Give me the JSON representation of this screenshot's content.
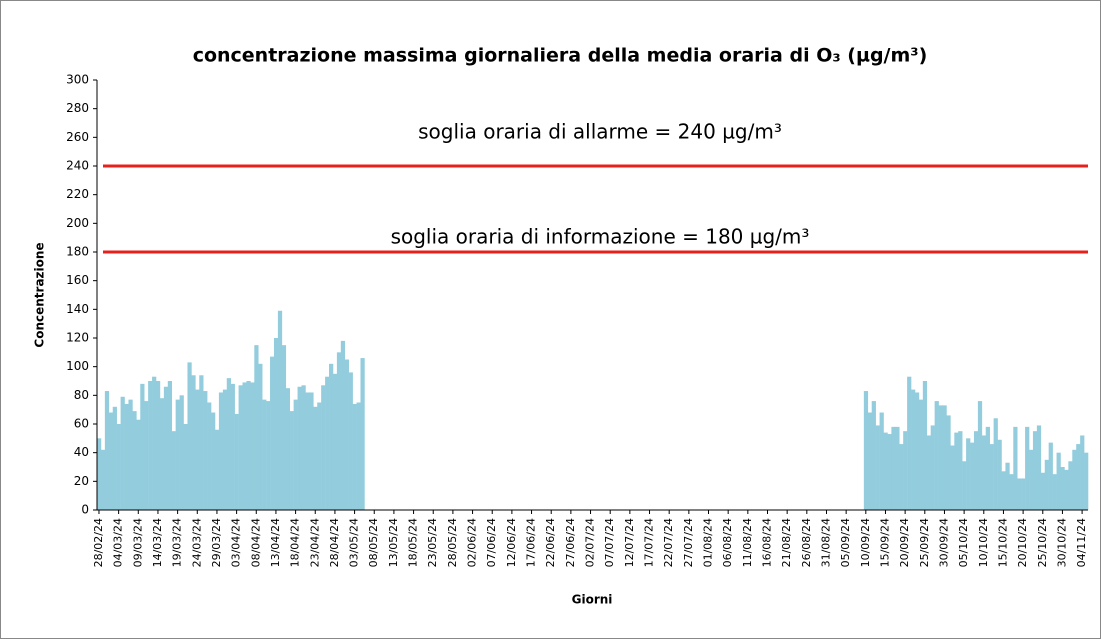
{
  "chart_data": {
    "type": "bar",
    "title": "concentrazione massima giornaliera della media oraria di O₃ (µg/m³)",
    "x_label": "Giorni",
    "y_label": "Concentrazione",
    "color": "#93cddd",
    "ylim": [
      0,
      300
    ],
    "yticks": [
      0,
      20,
      40,
      60,
      80,
      100,
      120,
      140,
      160,
      180,
      200,
      220,
      240,
      260,
      280,
      300
    ],
    "thresholds": [
      {
        "value": 240,
        "label": "soglia oraria di allarme = 240 µg/m³",
        "color": "#e8201c"
      },
      {
        "value": 180,
        "label": "soglia oraria di informazione = 180 µg/m³",
        "color": "#e8201c"
      }
    ],
    "categories": [
      "28/02/24",
      null,
      null,
      null,
      null,
      "04/03/24",
      null,
      null,
      null,
      null,
      "09/03/24",
      null,
      null,
      null,
      null,
      "14/03/24",
      null,
      null,
      null,
      null,
      "19/03/24",
      null,
      null,
      null,
      null,
      "24/03/24",
      null,
      null,
      null,
      null,
      "29/03/24",
      null,
      null,
      null,
      null,
      "03/04/24",
      null,
      null,
      null,
      null,
      "08/04/24",
      null,
      null,
      null,
      null,
      "13/04/24",
      null,
      null,
      null,
      null,
      "18/04/24",
      null,
      null,
      null,
      null,
      "23/04/24",
      null,
      null,
      null,
      null,
      "28/04/24",
      null,
      null,
      null,
      null,
      "03/05/24",
      null,
      null,
      null,
      null,
      "08/05/24",
      null,
      null,
      null,
      null,
      "13/05/24",
      null,
      null,
      null,
      null,
      "18/05/24",
      null,
      null,
      null,
      null,
      "23/05/24",
      null,
      null,
      null,
      null,
      "28/05/24",
      null,
      null,
      null,
      null,
      "02/06/24",
      null,
      null,
      null,
      null,
      "07/06/24",
      null,
      null,
      null,
      null,
      "12/06/24",
      null,
      null,
      null,
      null,
      "17/06/24",
      null,
      null,
      null,
      null,
      "22/06/24",
      null,
      null,
      null,
      null,
      "27/06/24",
      null,
      null,
      null,
      null,
      "02/07/24",
      null,
      null,
      null,
      null,
      "07/07/24",
      null,
      null,
      null,
      null,
      "12/07/24",
      null,
      null,
      null,
      null,
      "17/07/24",
      null,
      null,
      null,
      null,
      "22/07/24",
      null,
      null,
      null,
      null,
      "27/07/24",
      null,
      null,
      null,
      null,
      "01/08/24",
      null,
      null,
      null,
      null,
      "06/08/24",
      null,
      null,
      null,
      null,
      "11/08/24",
      null,
      null,
      null,
      null,
      "16/08/24",
      null,
      null,
      null,
      null,
      "21/08/24",
      null,
      null,
      null,
      null,
      "26/08/24",
      null,
      null,
      null,
      null,
      "31/08/24",
      null,
      null,
      null,
      null,
      "05/09/24",
      null,
      null,
      null,
      null,
      "10/09/24",
      null,
      null,
      null,
      null,
      "15/09/24",
      null,
      null,
      null,
      null,
      "20/09/24",
      null,
      null,
      null,
      null,
      "25/09/24",
      null,
      null,
      null,
      null,
      "30/09/24",
      null,
      null,
      null,
      null,
      "05/10/24",
      null,
      null,
      null,
      null,
      "10/10/24",
      null,
      null,
      null,
      null,
      "15/10/24",
      null,
      null,
      null,
      null,
      "20/10/24",
      null,
      null,
      null,
      null,
      "25/10/24",
      null,
      null,
      null,
      null,
      "30/10/24",
      null,
      null,
      null,
      null,
      "04/11/24",
      null
    ],
    "values": [
      50,
      42,
      83,
      68,
      72,
      60,
      79,
      74,
      77,
      69,
      63,
      88,
      76,
      90,
      93,
      90,
      78,
      86,
      90,
      55,
      77,
      80,
      60,
      103,
      94,
      84,
      94,
      83,
      75,
      68,
      56,
      82,
      84,
      92,
      88,
      67,
      87,
      89,
      90,
      89,
      115,
      102,
      77,
      76,
      107,
      120,
      139,
      115,
      85,
      69,
      77,
      86,
      87,
      82,
      82,
      72,
      75,
      87,
      93,
      102,
      95,
      110,
      118,
      105,
      96,
      74,
      75,
      106,
      null,
      null,
      null,
      null,
      null,
      null,
      null,
      null,
      null,
      null,
      null,
      null,
      null,
      null,
      null,
      null,
      null,
      null,
      null,
      null,
      null,
      null,
      null,
      null,
      null,
      null,
      null,
      null,
      null,
      null,
      null,
      null,
      null,
      null,
      null,
      null,
      null,
      null,
      null,
      null,
      null,
      null,
      null,
      null,
      null,
      null,
      null,
      null,
      null,
      null,
      null,
      null,
      null,
      null,
      null,
      null,
      null,
      null,
      null,
      null,
      null,
      null,
      null,
      null,
      null,
      null,
      null,
      null,
      null,
      null,
      null,
      null,
      null,
      null,
      null,
      null,
      null,
      null,
      null,
      null,
      null,
      null,
      null,
      null,
      null,
      null,
      null,
      null,
      null,
      null,
      null,
      null,
      null,
      null,
      null,
      null,
      null,
      null,
      null,
      null,
      null,
      null,
      null,
      null,
      null,
      null,
      null,
      null,
      null,
      null,
      null,
      null,
      null,
      null,
      null,
      null,
      null,
      null,
      null,
      null,
      null,
      null,
      null,
      null,
      null,
      null,
      null,
      83,
      68,
      76,
      59,
      68,
      54,
      53,
      58,
      58,
      46,
      55,
      93,
      84,
      82,
      77,
      90,
      52,
      59,
      76,
      73,
      73,
      66,
      45,
      54,
      55,
      34,
      50,
      47,
      55,
      76,
      52,
      58,
      46,
      64,
      49,
      27,
      33,
      25,
      58,
      22,
      22,
      58,
      42,
      55,
      59,
      26,
      35,
      47,
      25,
      40,
      30,
      28,
      34,
      42,
      46,
      52,
      40
    ]
  }
}
